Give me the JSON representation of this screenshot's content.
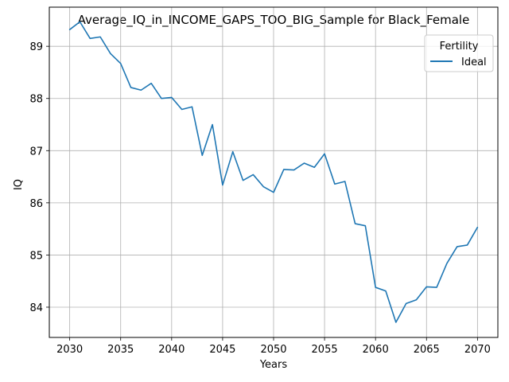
{
  "chart_data": {
    "type": "line",
    "title": "Average_IQ_in_INCOME_GAPS_TOO_BIG_Sample for Black_Female",
    "xlabel": "Years",
    "ylabel": "IQ",
    "xlim": [
      2028,
      2072
    ],
    "ylim": [
      83.42,
      89.75
    ],
    "xticks": [
      2030,
      2035,
      2040,
      2045,
      2050,
      2055,
      2060,
      2065,
      2070
    ],
    "yticks": [
      84,
      85,
      86,
      87,
      88,
      89
    ],
    "grid": true,
    "legend": {
      "title": "Fertility",
      "position": "top-right"
    },
    "series": [
      {
        "name": "Ideal",
        "color": "#1f77b4",
        "x": [
          2030,
          2031,
          2032,
          2033,
          2034,
          2035,
          2036,
          2037,
          2038,
          2039,
          2040,
          2041,
          2042,
          2043,
          2044,
          2045,
          2046,
          2047,
          2048,
          2049,
          2050,
          2051,
          2052,
          2053,
          2054,
          2055,
          2056,
          2057,
          2058,
          2059,
          2060,
          2061,
          2062,
          2063,
          2064,
          2065,
          2066,
          2067,
          2068,
          2069,
          2070
        ],
        "y": [
          89.32,
          89.47,
          89.15,
          89.18,
          88.86,
          88.67,
          88.21,
          88.16,
          88.29,
          88.0,
          88.02,
          87.79,
          87.84,
          86.91,
          87.5,
          86.34,
          86.98,
          86.43,
          86.54,
          86.31,
          86.2,
          86.64,
          86.63,
          86.76,
          86.68,
          86.94,
          86.36,
          86.41,
          85.6,
          85.56,
          84.38,
          84.31,
          83.71,
          84.07,
          84.14,
          84.39,
          84.38,
          84.84,
          85.16,
          85.19,
          85.53
        ]
      }
    ]
  }
}
